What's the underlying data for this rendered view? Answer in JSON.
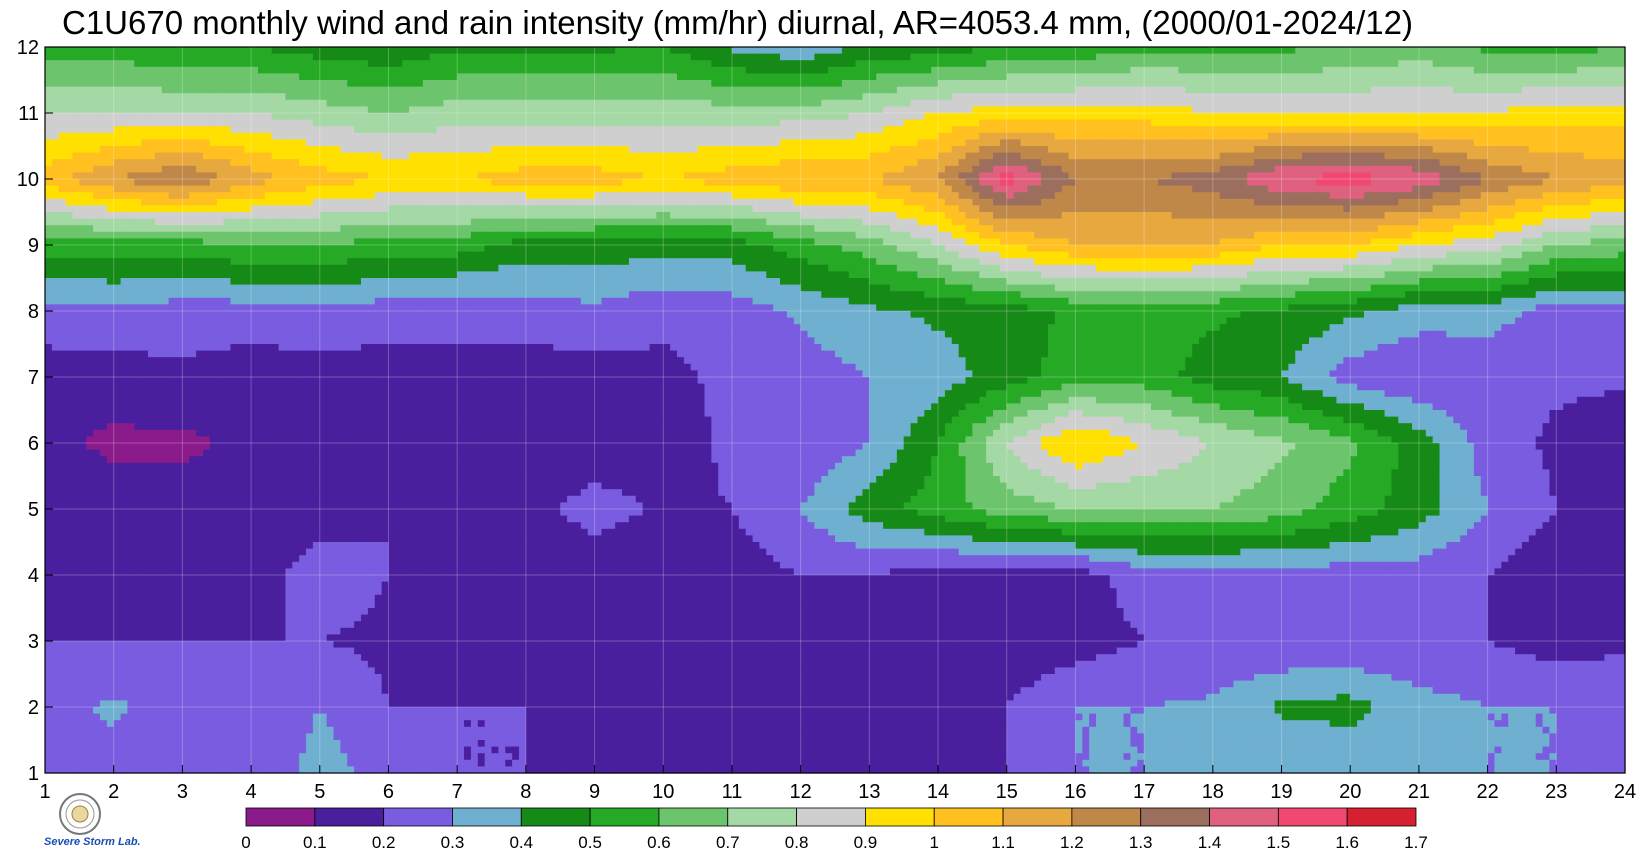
{
  "chart_data": {
    "type": "heatmap",
    "title": "C1U670 monthly wind and rain intensity (mm/hr) diurnal, AR=4053.4 mm, (2000/01-2024/12)",
    "xlabel": "",
    "ylabel": "",
    "x": [
      1,
      2,
      3,
      4,
      5,
      6,
      7,
      8,
      9,
      10,
      11,
      12,
      13,
      14,
      15,
      16,
      17,
      18,
      19,
      20,
      21,
      22,
      23,
      24
    ],
    "y": [
      1,
      2,
      3,
      4,
      5,
      6,
      7,
      8,
      9,
      10,
      11,
      12
    ],
    "xlim": [
      1,
      24
    ],
    "ylim": [
      1,
      12
    ],
    "x_ticks": [
      "1",
      "2",
      "3",
      "4",
      "5",
      "6",
      "7",
      "8",
      "9",
      "10",
      "11",
      "12",
      "13",
      "14",
      "15",
      "16",
      "17",
      "18",
      "19",
      "20",
      "21",
      "22",
      "23",
      "24"
    ],
    "y_ticks": [
      "1",
      "2",
      "3",
      "4",
      "5",
      "6",
      "7",
      "8",
      "9",
      "10",
      "11",
      "12"
    ],
    "grid": true,
    "z": [
      [
        0.3,
        0.25,
        0.2,
        0.2,
        0.35,
        0.25,
        0.2,
        0.2,
        0.2,
        0.2,
        0.2,
        0.2,
        0.2,
        0.2,
        0.2,
        0.3,
        0.3,
        0.3,
        0.3,
        0.3,
        0.3,
        0.3,
        0.3,
        0.3
      ],
      [
        0.25,
        0.32,
        0.24,
        0.2,
        0.3,
        0.2,
        0.2,
        0.2,
        0.18,
        0.18,
        0.16,
        0.16,
        0.18,
        0.18,
        0.2,
        0.3,
        0.3,
        0.32,
        0.42,
        0.44,
        0.34,
        0.3,
        0.3,
        0.28
      ],
      [
        0.2,
        0.2,
        0.2,
        0.2,
        0.2,
        0.18,
        0.12,
        0.12,
        0.12,
        0.12,
        0.12,
        0.12,
        0.12,
        0.12,
        0.12,
        0.15,
        0.2,
        0.2,
        0.2,
        0.2,
        0.2,
        0.2,
        0.15,
        0.18
      ],
      [
        0.15,
        0.15,
        0.15,
        0.15,
        0.25,
        0.2,
        0.12,
        0.12,
        0.12,
        0.12,
        0.15,
        0.2,
        0.2,
        0.15,
        0.15,
        0.15,
        0.25,
        0.25,
        0.25,
        0.25,
        0.25,
        0.2,
        0.12,
        0.15
      ],
      [
        0.18,
        0.15,
        0.15,
        0.15,
        0.15,
        0.2,
        0.15,
        0.15,
        0.25,
        0.18,
        0.2,
        0.3,
        0.45,
        0.55,
        0.65,
        0.7,
        0.7,
        0.7,
        0.65,
        0.55,
        0.45,
        0.3,
        0.2,
        0.2
      ],
      [
        0.12,
        0.08,
        0.08,
        0.12,
        0.15,
        0.15,
        0.12,
        0.12,
        0.12,
        0.15,
        0.22,
        0.22,
        0.3,
        0.5,
        0.8,
        1.02,
        0.9,
        0.8,
        0.72,
        0.62,
        0.45,
        0.25,
        0.18,
        0.12
      ],
      [
        0.15,
        0.15,
        0.18,
        0.15,
        0.15,
        0.15,
        0.18,
        0.15,
        0.15,
        0.18,
        0.22,
        0.25,
        0.3,
        0.35,
        0.45,
        0.55,
        0.55,
        0.45,
        0.4,
        0.25,
        0.2,
        0.22,
        0.22,
        0.22
      ],
      [
        0.26,
        0.28,
        0.25,
        0.25,
        0.28,
        0.25,
        0.22,
        0.25,
        0.28,
        0.22,
        0.25,
        0.32,
        0.38,
        0.42,
        0.45,
        0.52,
        0.55,
        0.52,
        0.48,
        0.42,
        0.35,
        0.35,
        0.25,
        0.28
      ],
      [
        0.55,
        0.55,
        0.55,
        0.6,
        0.6,
        0.55,
        0.55,
        0.45,
        0.45,
        0.45,
        0.45,
        0.55,
        0.65,
        0.8,
        1.0,
        1.1,
        1.1,
        1.1,
        1.0,
        1.0,
        0.9,
        0.85,
        0.7,
        0.65
      ],
      [
        1.05,
        1.2,
        1.3,
        1.15,
        1.05,
        1.0,
        1.0,
        1.05,
        1.05,
        1.0,
        1.05,
        1.1,
        1.1,
        1.2,
        1.55,
        1.3,
        1.3,
        1.35,
        1.5,
        1.55,
        1.48,
        1.3,
        1.2,
        1.15
      ],
      [
        0.8,
        0.8,
        0.8,
        0.8,
        0.75,
        0.7,
        0.75,
        0.75,
        0.75,
        0.75,
        0.75,
        0.75,
        0.8,
        0.9,
        0.95,
        0.95,
        0.95,
        0.9,
        0.9,
        0.9,
        0.9,
        0.9,
        0.95,
        0.95
      ],
      [
        0.55,
        0.55,
        0.5,
        0.5,
        0.45,
        0.42,
        0.48,
        0.48,
        0.48,
        0.5,
        0.38,
        0.32,
        0.42,
        0.45,
        0.5,
        0.52,
        0.58,
        0.58,
        0.58,
        0.6,
        0.65,
        0.58,
        0.55,
        0.6
      ]
    ],
    "colorbar": {
      "levels": [
        0,
        0.1,
        0.2,
        0.3,
        0.4,
        0.5,
        0.6,
        0.7,
        0.8,
        0.9,
        1,
        1.1,
        1.2,
        1.3,
        1.4,
        1.5,
        1.6,
        1.7
      ],
      "tick_labels": [
        "0",
        "0.1",
        "0.2",
        "0.3",
        "0.4",
        "0.5",
        "0.6",
        "0.7",
        "0.8",
        "0.9",
        "1",
        "1.1",
        "1.2",
        "1.3",
        "1.4",
        "1.5",
        "1.6",
        "1.7"
      ],
      "colors": [
        "#8b1a8b",
        "#4a1f9e",
        "#7a5ce0",
        "#6fb0d0",
        "#168a16",
        "#26aa26",
        "#6cc46c",
        "#a4d8a4",
        "#cfcfcf",
        "#ffe000",
        "#ffc020",
        "#e8a840",
        "#c08848",
        "#9c6e5e",
        "#e06080",
        "#f04870",
        "#d42030"
      ],
      "position": "bottom"
    }
  },
  "logo": {
    "name": "lab-seal-logo",
    "text": "Severe Storm Lab."
  }
}
